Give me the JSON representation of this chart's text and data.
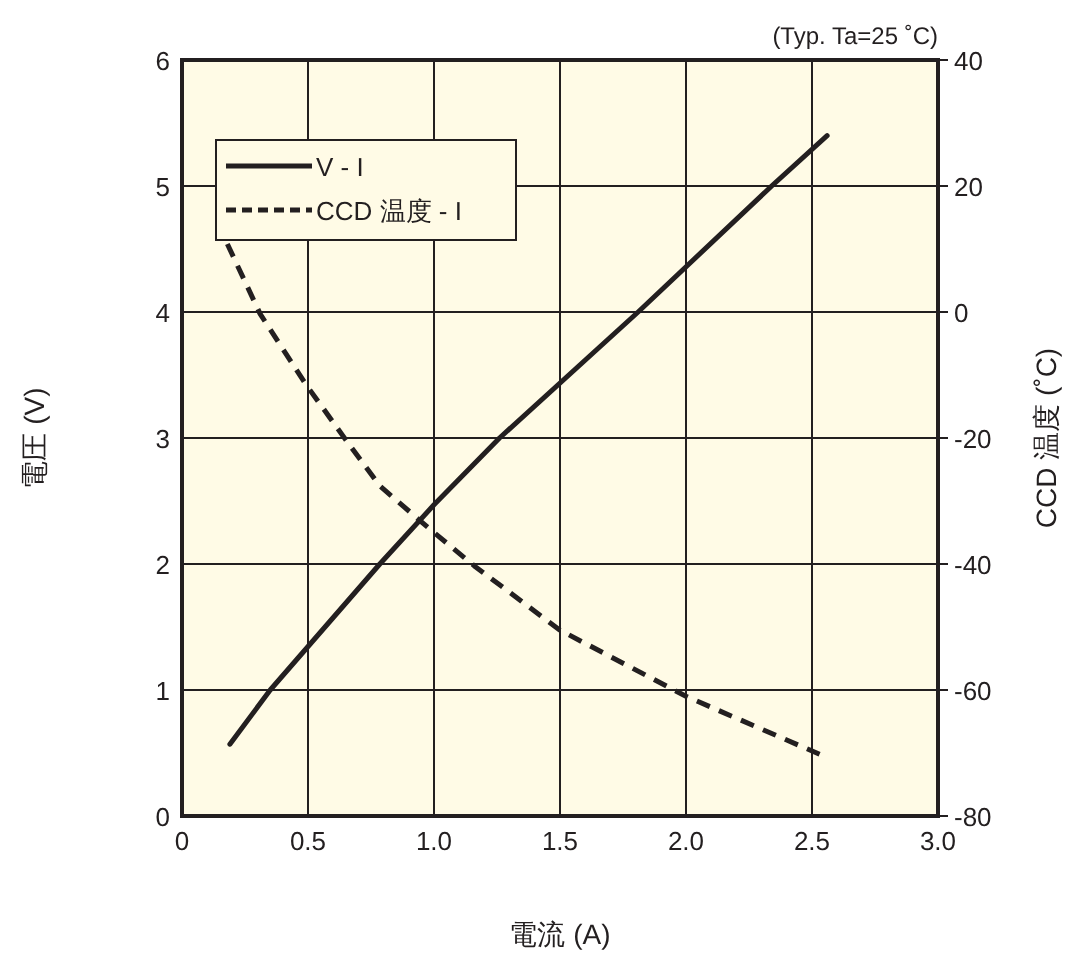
{
  "chart_data": {
    "type": "line",
    "xlabel": "電流 (A)",
    "ylabel": "電圧 (V)",
    "y2label": "CCD 温度 (˚C)",
    "annotations": [
      "(Typ. Ta=25 ˚C)"
    ],
    "xlim": [
      0,
      3
    ],
    "xticks": [
      0,
      0.5,
      {
        "value": 1,
        "label": "1.0"
      },
      1.5,
      {
        "value": 2,
        "label": "2.0"
      },
      2.5,
      {
        "value": 3,
        "label": "3.0"
      }
    ],
    "ylim": [
      0,
      6
    ],
    "yticks": [
      0,
      1,
      2,
      3,
      4,
      5,
      6
    ],
    "y2lim": [
      -80,
      40
    ],
    "y2ticks": [
      -80,
      -60,
      -40,
      -20,
      0,
      20,
      40
    ],
    "grid": true,
    "legend": "top left",
    "series": [
      {
        "name": "V - I",
        "color": "#231f20",
        "line_style": "solid",
        "x": [
          0.19,
          0.35,
          0.785,
          1.0,
          1.26,
          1.81,
          2.34,
          2.56
        ],
        "values": [
          0.57,
          1,
          2,
          2.47,
          3,
          4,
          5,
          5.4
        ]
      },
      {
        "name": "CCD 温度 - I",
        "color": "#231f20",
        "line_style": "dashed",
        "axis": "y2",
        "x": [
          0.18,
          0.31,
          0.49,
          0.65,
          0.785,
          0.97,
          1.16,
          1.5,
          2.0,
          2.53
        ],
        "values": [
          10.8,
          -0.3,
          -11.4,
          -20.3,
          -27.6,
          -34,
          -40.3,
          -50.5,
          -61,
          -70.2
        ]
      }
    ]
  }
}
